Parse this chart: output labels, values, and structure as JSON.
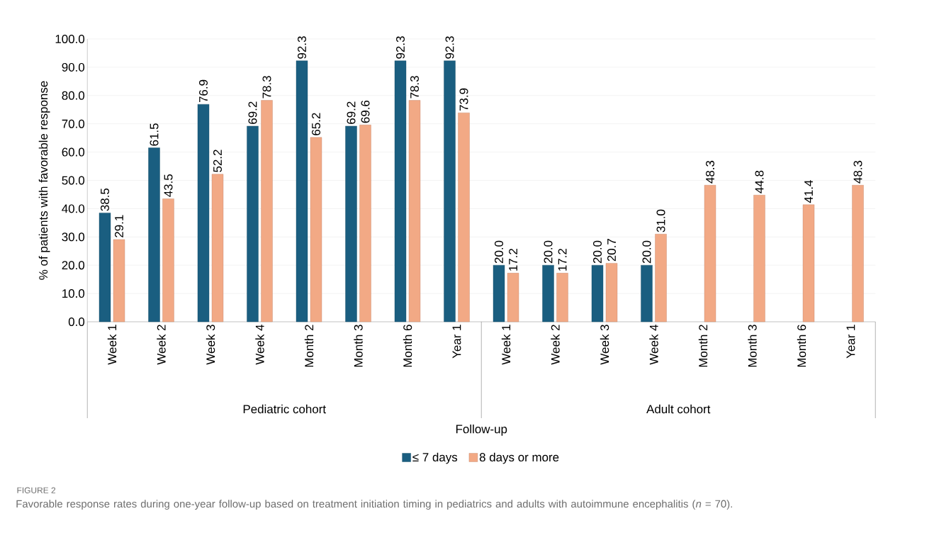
{
  "chart_data": {
    "type": "bar",
    "xlabel": "Follow-up",
    "ylabel": "% of patients with favorable response",
    "categories": [
      "Week 1",
      "Week 2",
      "Week 3",
      "Week 4",
      "Month 2",
      "Month 3",
      "Month 6",
      "Year 1",
      "Week 1",
      "Week 2",
      "Week 3",
      "Week 4",
      "Month 2",
      "Month 3",
      "Month 6",
      "Year 1"
    ],
    "series": [
      {
        "name": "≤ 7 days",
        "color": "#1a5e80",
        "values": [
          38.5,
          61.5,
          76.9,
          69.2,
          92.3,
          69.2,
          92.3,
          92.3,
          20.0,
          20.0,
          20.0,
          20.0,
          null,
          null,
          null,
          null
        ],
        "value_labels": [
          "38.5",
          "61.5",
          "76.9",
          "69.2",
          "92.3",
          "69.2",
          "92.3",
          "92.3",
          "20.0",
          "20.0",
          "20.0",
          "20.0",
          null,
          null,
          null,
          null
        ]
      },
      {
        "name": "8 days or more",
        "color": "#f2a985",
        "values": [
          29.1,
          43.5,
          52.2,
          78.3,
          65.2,
          69.6,
          78.3,
          73.9,
          17.2,
          17.2,
          20.7,
          31.0,
          48.3,
          44.8,
          41.4,
          48.3
        ],
        "value_labels": [
          "29.1",
          "43.5",
          "52.2",
          "78.3",
          "65.2",
          "69.6",
          "78.3",
          "73.9",
          "17.2",
          "17.2",
          "20.7",
          "31.0",
          "48.3",
          "44.8",
          "41.4",
          "48.3"
        ]
      }
    ],
    "ylim": [
      0,
      100
    ],
    "yticks": [
      {
        "value": 0,
        "label": "0.0"
      },
      {
        "value": 10,
        "label": "10.0"
      },
      {
        "value": 20,
        "label": "20.0"
      },
      {
        "value": 30,
        "label": "30.0"
      },
      {
        "value": 40,
        "label": "40.0"
      },
      {
        "value": 50,
        "label": "50.0"
      },
      {
        "value": 60,
        "label": "60.0"
      },
      {
        "value": 70,
        "label": "70.0"
      },
      {
        "value": 80,
        "label": "80.0"
      },
      {
        "value": 90,
        "label": "90.0"
      },
      {
        "value": 100,
        "label": "100.0"
      }
    ],
    "grid": "y",
    "legend": "bottom",
    "annotations": [
      "Pediatric cohort",
      "Adult cohort",
      "FIGURE 2",
      "Favorable response rates during one-year follow-up based on treatment initiation timing in pediatrics and adults with autoimmune encephalitis (*n* = 70)."
    ]
  }
}
